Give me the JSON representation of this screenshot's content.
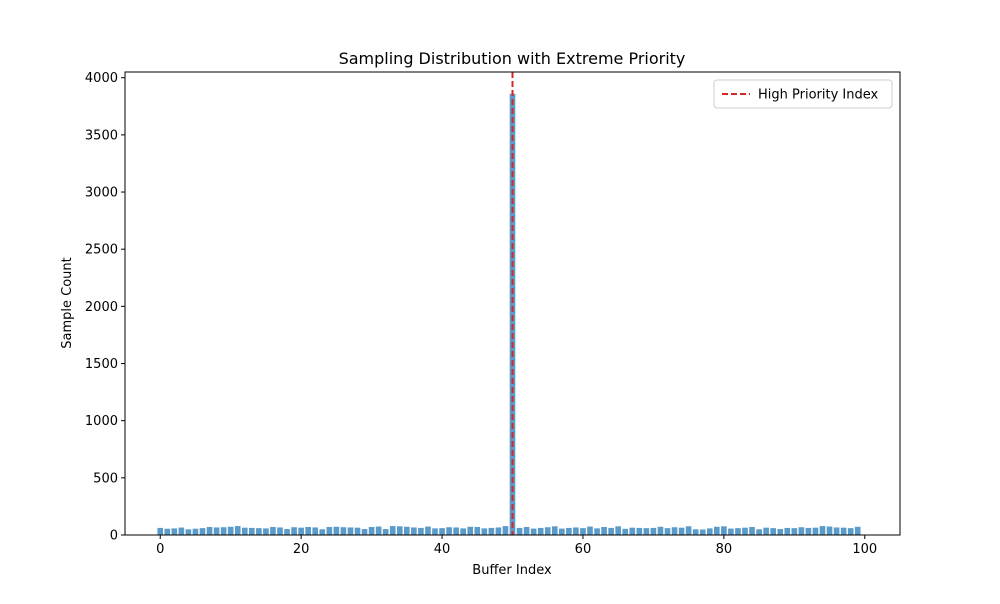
{
  "chart_data": {
    "type": "bar",
    "title": "Sampling Distribution with Extreme Priority",
    "xlabel": "Buffer Index",
    "ylabel": "Sample Count",
    "xlim": [
      -5,
      105
    ],
    "ylim": [
      0,
      4050
    ],
    "xticks": [
      0,
      20,
      40,
      60,
      80,
      100
    ],
    "yticks": [
      0,
      500,
      1000,
      1500,
      2000,
      2500,
      3000,
      3500,
      4000
    ],
    "grid": false,
    "legend": {
      "placement": "top-right",
      "entries": [
        {
          "label": "High Priority Index",
          "style": "dashed",
          "color": "#d62728"
        }
      ]
    },
    "colors": {
      "bar": "#5b9bc9",
      "marker_line": "#d62728"
    },
    "high_priority_index": 50,
    "x": [
      0,
      1,
      2,
      3,
      4,
      5,
      6,
      7,
      8,
      9,
      10,
      11,
      12,
      13,
      14,
      15,
      16,
      17,
      18,
      19,
      20,
      21,
      22,
      23,
      24,
      25,
      26,
      27,
      28,
      29,
      30,
      31,
      32,
      33,
      34,
      35,
      36,
      37,
      38,
      39,
      40,
      41,
      42,
      43,
      44,
      45,
      46,
      47,
      48,
      49,
      50,
      51,
      52,
      53,
      54,
      55,
      56,
      57,
      58,
      59,
      60,
      61,
      62,
      63,
      64,
      65,
      66,
      67,
      68,
      69,
      70,
      71,
      72,
      73,
      74,
      75,
      76,
      77,
      78,
      79,
      80,
      81,
      82,
      83,
      84,
      85,
      86,
      87,
      88,
      89,
      90,
      91,
      92,
      93,
      94,
      95,
      96,
      97,
      98,
      99
    ],
    "values": [
      62,
      55,
      58,
      65,
      50,
      55,
      60,
      70,
      66,
      68,
      72,
      78,
      64,
      62,
      60,
      58,
      70,
      66,
      52,
      68,
      64,
      70,
      66,
      50,
      70,
      72,
      68,
      66,
      64,
      52,
      70,
      74,
      52,
      78,
      76,
      72,
      66,
      62,
      74,
      58,
      60,
      68,
      66,
      58,
      72,
      70,
      58,
      62,
      66,
      78,
      3860,
      62,
      70,
      56,
      62,
      68,
      76,
      56,
      62,
      66,
      60,
      74,
      58,
      70,
      62,
      76,
      54,
      64,
      62,
      60,
      62,
      72,
      60,
      68,
      64,
      76,
      50,
      48,
      58,
      72,
      76,
      56,
      60,
      64,
      70,
      50,
      64,
      60,
      52,
      62,
      60,
      68,
      62,
      64,
      78,
      74,
      66,
      64,
      60,
      72
    ]
  }
}
